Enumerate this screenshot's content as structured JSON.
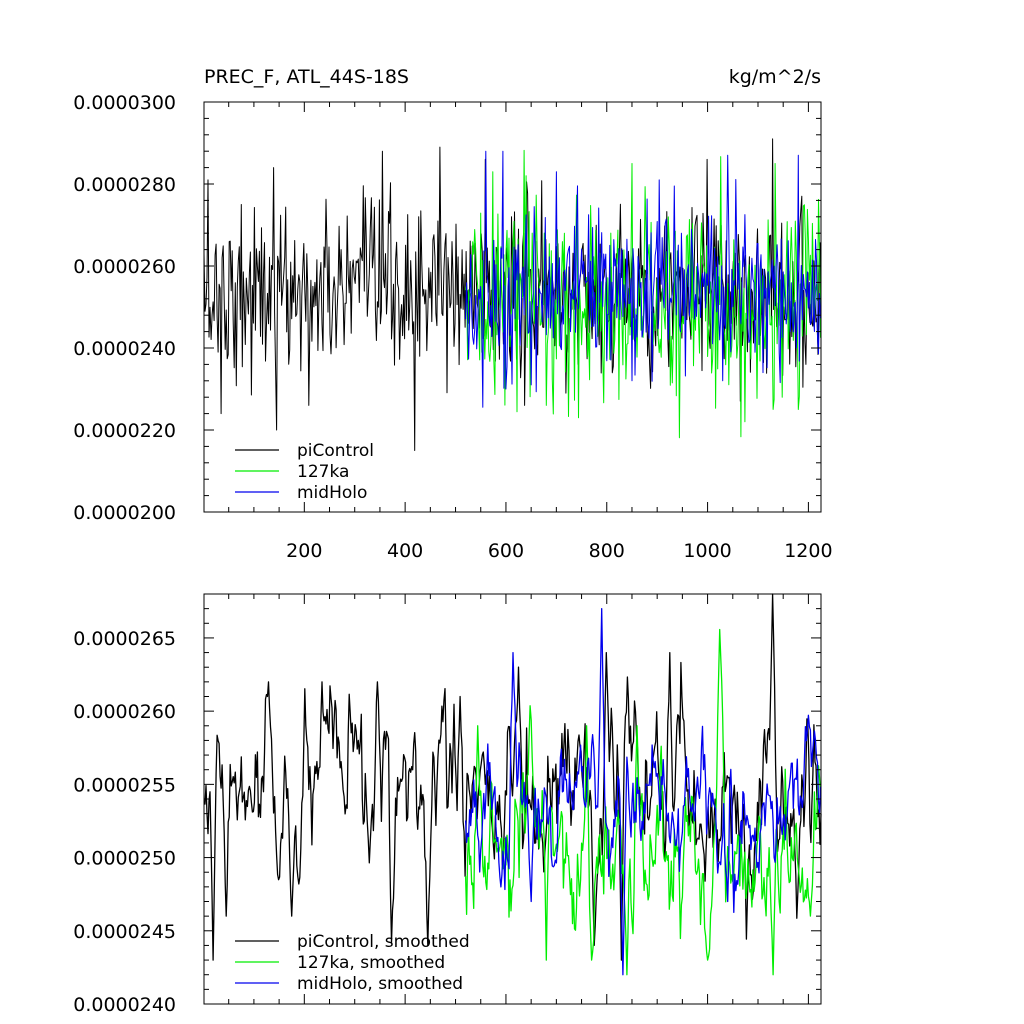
{
  "colors": {
    "piControl": "#000000",
    "127ka": "#00ee00",
    "midHolo": "#0000ee",
    "frame": "#000000",
    "background": "#ffffff"
  },
  "chart_data": [
    {
      "type": "line",
      "title": "PREC_F, ATL_44S-18S",
      "units": "kg/m^2/s",
      "xlim": [
        1,
        1225
      ],
      "ylim": [
        2e-05,
        3e-05
      ],
      "x_ticks": [
        200,
        400,
        600,
        800,
        1000,
        1200
      ],
      "x_tick_labels": [
        "200",
        "400",
        "600",
        "800",
        "1000",
        "1200"
      ],
      "y_ticks": [
        2e-05,
        2.2e-05,
        2.4e-05,
        2.6e-05,
        2.8e-05,
        3e-05
      ],
      "y_tick_labels": [
        "0.0000200",
        "0.0000220",
        "0.0000240",
        "0.0000260",
        "0.0000280",
        "0.0000300"
      ],
      "grid": false,
      "legend_position": "bottom-left",
      "legend": [
        "piControl",
        "127ka",
        "midHolo"
      ],
      "series": [
        {
          "name": "piControl",
          "x_range": [
            1,
            1225
          ],
          "mean": 2.535e-05,
          "spread": 1e-06,
          "peaks": [
            [
              10,
              2.81e-05
            ],
            [
              75,
              2.75e-05
            ],
            [
              140,
              2.84e-05
            ],
            [
              355,
              2.88e-05
            ],
            [
              470,
              2.89e-05
            ],
            [
              560,
              2.86e-05
            ],
            [
              1000,
              2.86e-05
            ],
            [
              1130,
              2.91e-05
            ]
          ],
          "troughs": [
            [
              35,
              2.24e-05
            ],
            [
              145,
              2.2e-05
            ],
            [
              210,
              2.26e-05
            ],
            [
              420,
              2.15e-05
            ],
            [
              720,
              2.29e-05
            ],
            [
              1195,
              2.36e-05
            ]
          ]
        },
        {
          "name": "127ka",
          "x_range": [
            520,
            1225
          ],
          "mean": 2.51e-05,
          "spread": 1.2e-06,
          "peaks": [
            [
              575,
              2.83e-05
            ],
            [
              640,
              2.82e-05
            ],
            [
              850,
              2.85e-05
            ],
            [
              1135,
              2.85e-05
            ]
          ],
          "troughs": [
            [
              680,
              2.26e-05
            ],
            [
              745,
              2.23e-05
            ],
            [
              1075,
              2.22e-05
            ],
            [
              1180,
              2.25e-05
            ]
          ]
        },
        {
          "name": "midHolo",
          "x_range": [
            520,
            1225
          ],
          "mean": 2.54e-05,
          "spread": 9.5e-07,
          "peaks": [
            [
              560,
              2.88e-05
            ],
            [
              595,
              2.88e-05
            ],
            [
              700,
              2.83e-05
            ],
            [
              905,
              2.81e-05
            ],
            [
              1040,
              2.87e-05
            ],
            [
              1180,
              2.87e-05
            ]
          ],
          "troughs": [
            [
              600,
              2.3e-05
            ],
            [
              650,
              2.31e-05
            ],
            [
              850,
              2.32e-05
            ],
            [
              1030,
              2.32e-05
            ]
          ]
        }
      ]
    },
    {
      "type": "line",
      "title": "",
      "xlim": [
        1,
        1225
      ],
      "ylim": [
        2.4e-05,
        2.68e-05
      ],
      "x_ticks": [
        200,
        400,
        600,
        800,
        1000,
        1200
      ],
      "y_ticks": [
        2.4e-05,
        2.45e-05,
        2.5e-05,
        2.55e-05,
        2.6e-05,
        2.65e-05
      ],
      "y_tick_labels": [
        "0.0000240",
        "0.0000245",
        "0.0000250",
        "0.0000255",
        "0.0000260",
        "0.0000265"
      ],
      "grid": false,
      "legend_position": "bottom-left",
      "legend": [
        "piControl, smoothed",
        "127ka, smoothed",
        "midHolo, smoothed"
      ],
      "series": [
        {
          "name": "piControl, smoothed",
          "x_range": [
            1,
            1225
          ],
          "mean": 2.535e-05,
          "spread": 3.8e-07,
          "peaks": [
            [
              30,
              2.58e-05
            ],
            [
              130,
              2.62e-05
            ],
            [
              235,
              2.62e-05
            ],
            [
              345,
              2.62e-05
            ],
            [
              510,
              2.61e-05
            ],
            [
              625,
              2.63e-05
            ],
            [
              800,
              2.64e-05
            ],
            [
              925,
              2.64e-05
            ],
            [
              1130,
              2.68e-05
            ]
          ],
          "troughs": [
            [
              20,
              2.43e-05
            ],
            [
              45,
              2.46e-05
            ],
            [
              175,
              2.46e-05
            ],
            [
              445,
              2.44e-05
            ],
            [
              775,
              2.44e-05
            ],
            [
              830,
              2.43e-05
            ]
          ]
        },
        {
          "name": "127ka, smoothed",
          "x_range": [
            520,
            1225
          ],
          "mean": 2.5e-05,
          "spread": 3.8e-07,
          "peaks": [
            [
              545,
              2.59e-05
            ],
            [
              680,
              2.6e-05
            ],
            [
              760,
              2.59e-05
            ],
            [
              860,
              2.59e-05
            ]
          ],
          "troughs": [
            [
              680,
              2.43e-05
            ],
            [
              770,
              2.43e-05
            ],
            [
              840,
              2.42e-05
            ],
            [
              1000,
              2.43e-05
            ],
            [
              1130,
              2.42e-05
            ],
            [
              1205,
              2.46e-05
            ]
          ]
        },
        {
          "name": "midHolo, smoothed",
          "x_range": [
            520,
            1225
          ],
          "mean": 2.535e-05,
          "spread": 3e-07,
          "peaks": [
            [
              615,
              2.64e-05
            ],
            [
              790,
              2.67e-05
            ],
            [
              1045,
              2.61e-05
            ],
            [
              1215,
              2.58e-05
            ]
          ],
          "troughs": [
            [
              590,
              2.48e-05
            ],
            [
              650,
              2.47e-05
            ],
            [
              833,
              2.42e-05
            ],
            [
              1040,
              2.47e-05
            ]
          ]
        }
      ]
    }
  ]
}
